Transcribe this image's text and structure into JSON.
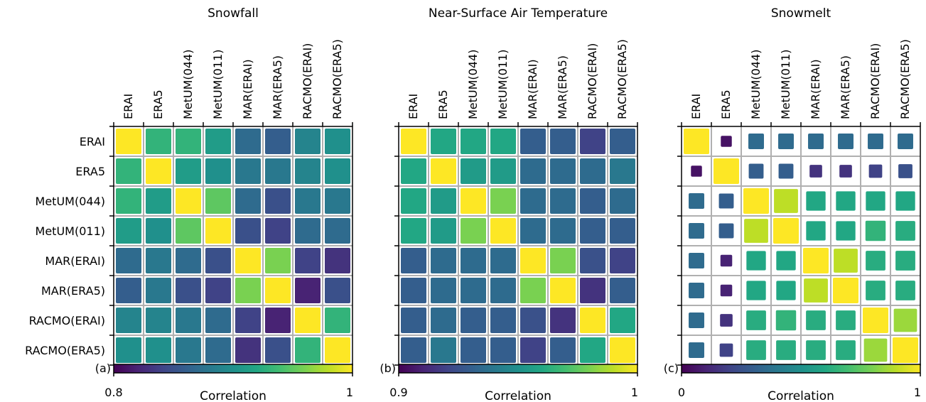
{
  "chart_data": [
    {
      "type": "heatmap",
      "panel_label": "(a)",
      "title": "Snowfall",
      "row_labels": [
        "ERAI",
        "ERA5",
        "MetUM(044)",
        "MetUM(011)",
        "MAR(ERAI)",
        "MAR(ERA5)",
        "RACMO(ERAI)",
        "RACMO(ERA5)"
      ],
      "col_labels": [
        "ERAI",
        "ERA5",
        "MetUM(044)",
        "MetUM(011)",
        "MAR(ERAI)",
        "MAR(ERA5)",
        "RACMO(ERAI)",
        "RACMO(ERA5)"
      ],
      "values": [
        [
          1.0,
          0.93,
          0.93,
          0.91,
          0.87,
          0.86,
          0.89,
          0.9
        ],
        [
          0.93,
          1.0,
          0.91,
          0.9,
          0.88,
          0.88,
          0.89,
          0.9
        ],
        [
          0.93,
          0.91,
          1.0,
          0.95,
          0.87,
          0.85,
          0.88,
          0.88
        ],
        [
          0.91,
          0.9,
          0.95,
          1.0,
          0.85,
          0.84,
          0.87,
          0.87
        ],
        [
          0.87,
          0.88,
          0.87,
          0.85,
          1.0,
          0.96,
          0.84,
          0.83
        ],
        [
          0.86,
          0.88,
          0.85,
          0.84,
          0.96,
          1.0,
          0.82,
          0.85
        ],
        [
          0.89,
          0.89,
          0.88,
          0.87,
          0.84,
          0.82,
          1.0,
          0.93
        ],
        [
          0.9,
          0.9,
          0.88,
          0.87,
          0.83,
          0.85,
          0.93,
          1.0
        ]
      ],
      "size_encoding": "uniform",
      "colorbar": {
        "min": 0.8,
        "max": 1,
        "min_label": "0.8",
        "max_label": "1",
        "label": "Correlation"
      }
    },
    {
      "type": "heatmap",
      "panel_label": "(b)",
      "title": "Near-Surface Air Temperature",
      "row_labels": [
        "ERAI",
        "ERA5",
        "MetUM(044)",
        "MetUM(011)",
        "MAR(ERAI)",
        "MAR(ERA5)",
        "RACMO(ERAI)",
        "RACMO(ERA5)"
      ],
      "col_labels": [
        "ERAI",
        "ERA5",
        "MetUM(044)",
        "MetUM(011)",
        "MAR(ERAI)",
        "MAR(ERA5)",
        "RACMO(ERAI)",
        "RACMO(ERA5)"
      ],
      "values": [
        [
          1.0,
          0.96,
          0.96,
          0.96,
          0.93,
          0.93,
          0.92,
          0.93
        ],
        [
          0.96,
          1.0,
          0.955,
          0.955,
          0.935,
          0.935,
          0.935,
          0.94
        ],
        [
          0.96,
          0.955,
          1.0,
          0.98,
          0.935,
          0.935,
          0.93,
          0.935
        ],
        [
          0.96,
          0.955,
          0.98,
          1.0,
          0.935,
          0.935,
          0.93,
          0.93
        ],
        [
          0.93,
          0.935,
          0.935,
          0.935,
          1.0,
          0.98,
          0.925,
          0.92
        ],
        [
          0.93,
          0.935,
          0.935,
          0.935,
          0.98,
          1.0,
          0.915,
          0.93
        ],
        [
          0.93,
          0.935,
          0.93,
          0.93,
          0.925,
          0.915,
          1.0,
          0.96
        ],
        [
          0.93,
          0.94,
          0.93,
          0.93,
          0.92,
          0.93,
          0.96,
          1.0
        ]
      ],
      "size_encoding": "uniform",
      "colorbar": {
        "min": 0.9,
        "max": 1,
        "min_label": "0.9",
        "max_label": "1",
        "label": "Correlation"
      }
    },
    {
      "type": "heatmap",
      "panel_label": "(c)",
      "title": "Snowmelt",
      "row_labels": [
        "ERAI",
        "ERA5",
        "MetUM(044)",
        "MetUM(011)",
        "MAR(ERAI)",
        "MAR(ERA5)",
        "RACMO(ERAI)",
        "RACMO(ERA5)"
      ],
      "col_labels": [
        "ERAI",
        "ERA5",
        "MetUM(044)",
        "MetUM(011)",
        "MAR(ERAI)",
        "MAR(ERA5)",
        "RACMO(ERAI)",
        "RACMO(ERA5)"
      ],
      "values": [
        [
          1.0,
          0.05,
          0.35,
          0.35,
          0.35,
          0.35,
          0.35,
          0.35
        ],
        [
          0.05,
          1.0,
          0.3,
          0.3,
          0.15,
          0.15,
          0.2,
          0.25
        ],
        [
          0.35,
          0.3,
          1.0,
          0.9,
          0.6,
          0.6,
          0.6,
          0.6
        ],
        [
          0.35,
          0.3,
          0.9,
          1.0,
          0.6,
          0.6,
          0.65,
          0.62
        ],
        [
          0.35,
          0.1,
          0.6,
          0.6,
          1.0,
          0.9,
          0.62,
          0.62
        ],
        [
          0.35,
          0.1,
          0.6,
          0.6,
          0.9,
          1.0,
          0.62,
          0.62
        ],
        [
          0.35,
          0.15,
          0.62,
          0.65,
          0.62,
          0.62,
          1.0,
          0.85
        ],
        [
          0.35,
          0.2,
          0.62,
          0.62,
          0.62,
          0.62,
          0.85,
          1.0
        ]
      ],
      "size_encoding": "proportional",
      "colorbar": {
        "min": 0,
        "max": 1,
        "min_label": "0",
        "max_label": "1",
        "label": "Correlation"
      }
    }
  ]
}
